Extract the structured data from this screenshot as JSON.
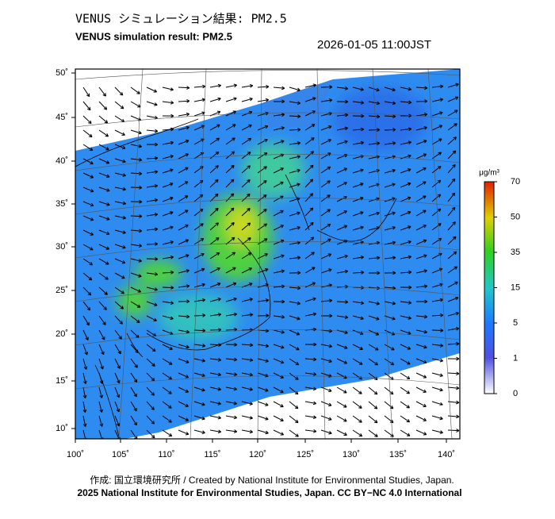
{
  "header": {
    "title_ja": "VENUS シミュレーション結果: PM2.5",
    "title_en": "VENUS simulation result: PM2.5",
    "timestamp": "2026-01-05 11:00JST"
  },
  "map": {
    "lon_labels": [
      "100˚",
      "105˚",
      "110˚",
      "115˚",
      "120˚",
      "125˚",
      "130˚",
      "135˚",
      "140˚"
    ],
    "lat_labels": [
      "50˚",
      "45˚",
      "40˚",
      "35˚",
      "30˚",
      "25˚",
      "20˚",
      "15˚",
      "10˚"
    ]
  },
  "colorbar": {
    "unit": "μg/m³",
    "ticks": [
      70,
      50,
      35,
      15,
      5,
      1,
      0
    ]
  },
  "footer": {
    "credit": "作成: 国立環境研究所 / Created by National Institute for Environmental Studies, Japan.",
    "license": "2025 National Institute for Environmental Studies, Japan. CC BY−NC 4.0 International"
  }
}
